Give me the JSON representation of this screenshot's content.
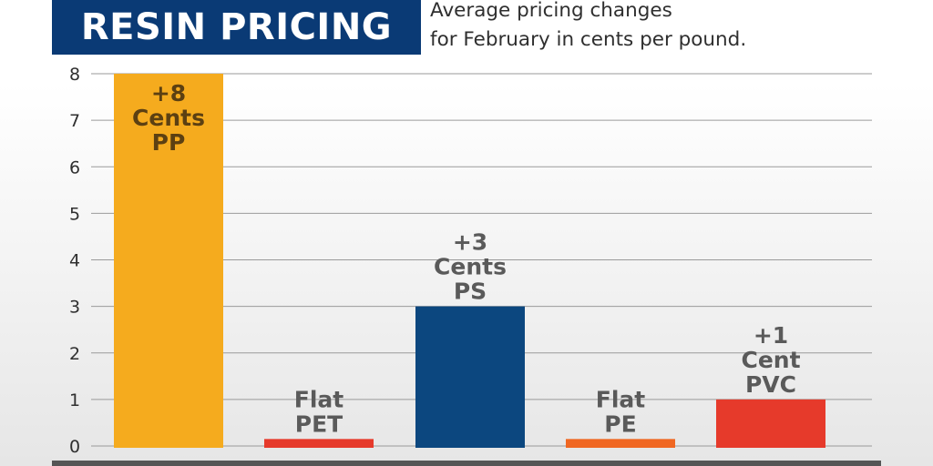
{
  "header": {
    "title": "RESIN PRICING",
    "subtitle_line1": "Average pricing changes",
    "subtitle_line2": "for February in cents per pound."
  },
  "chart_data": {
    "type": "bar",
    "categories": [
      "PP",
      "PET",
      "PS",
      "PE",
      "PVC"
    ],
    "values": [
      8,
      0.15,
      3,
      0.15,
      1
    ],
    "labels": [
      [
        "+8",
        "Cents",
        "PP"
      ],
      [
        "Flat",
        "PET"
      ],
      [
        "+3",
        "Cents",
        "PS"
      ],
      [
        "Flat",
        "PE"
      ],
      [
        "+1",
        "Cent",
        "PVC"
      ]
    ],
    "colors": [
      "#f5ab1e",
      "#e63a2b",
      "#0c477f",
      "#f06722",
      "#e63a2b"
    ],
    "label_inside": [
      true,
      false,
      false,
      false,
      false
    ],
    "ylim": [
      0,
      8
    ],
    "yticks": [
      0,
      1,
      2,
      3,
      4,
      5,
      6,
      7,
      8
    ],
    "grid": true,
    "title": "RESIN PRICING",
    "xlabel": "",
    "ylabel": ""
  }
}
